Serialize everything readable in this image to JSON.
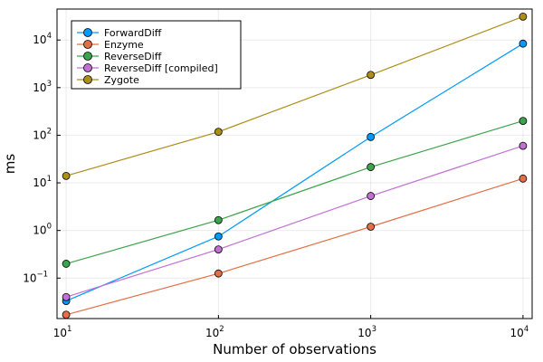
{
  "chart_data": {
    "type": "line",
    "xlabel": "Number of observations",
    "ylabel": "ms",
    "xscale": "log10",
    "yscale": "log10",
    "xlim": [
      10,
      10000
    ],
    "ylim_log10": [
      -1.85,
      4.65
    ],
    "grid": true,
    "legend_position": "top-left",
    "x": [
      10,
      100,
      1000,
      10000
    ],
    "x_ticks": [
      {
        "base": "10",
        "exp": "1",
        "value": 10
      },
      {
        "base": "10",
        "exp": "2",
        "value": 100
      },
      {
        "base": "10",
        "exp": "3",
        "value": 1000
      },
      {
        "base": "10",
        "exp": "4",
        "value": 10000
      }
    ],
    "y_ticks": [
      {
        "base": "10",
        "exp": "−1",
        "value": 0.1
      },
      {
        "base": "10",
        "exp": "0",
        "value": 1
      },
      {
        "base": "10",
        "exp": "1",
        "value": 10
      },
      {
        "base": "10",
        "exp": "2",
        "value": 100
      },
      {
        "base": "10",
        "exp": "3",
        "value": 1000
      },
      {
        "base": "10",
        "exp": "4",
        "value": 10000
      }
    ],
    "series": [
      {
        "name": "ForwardDiff",
        "color": "#009AFA",
        "values": [
          0.033,
          0.75,
          92,
          8400
        ]
      },
      {
        "name": "Enzyme",
        "color": "#E26F46",
        "values": [
          0.017,
          0.125,
          1.2,
          12.3
        ]
      },
      {
        "name": "ReverseDiff",
        "color": "#3DA44D",
        "values": [
          0.2,
          1.65,
          21.5,
          200
        ]
      },
      {
        "name": "ReverseDiff [compiled]",
        "color": "#C271D2",
        "values": [
          0.04,
          0.4,
          5.3,
          60
        ]
      },
      {
        "name": "Zygote",
        "color": "#AC8E18",
        "values": [
          14,
          118,
          1850,
          31000
        ]
      }
    ]
  }
}
